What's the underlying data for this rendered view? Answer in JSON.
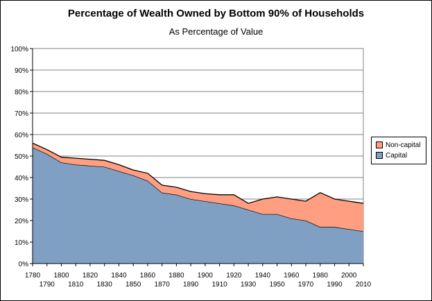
{
  "chart_data": {
    "type": "area",
    "stacked": true,
    "title": "Percentage of Wealth Owned by Bottom 90% of Households",
    "subtitle": "As Percentage of Value",
    "x": [
      1780,
      1790,
      1800,
      1810,
      1820,
      1830,
      1840,
      1850,
      1860,
      1870,
      1880,
      1890,
      1900,
      1910,
      1920,
      1930,
      1940,
      1950,
      1960,
      1970,
      1980,
      1990,
      2000,
      2010
    ],
    "x_tick_labels": [
      "1780",
      "1790",
      "1800",
      "1810",
      "1820",
      "1830",
      "1840",
      "1850",
      "1860",
      "1870",
      "1880",
      "1890",
      "1900",
      "1910",
      "1920",
      "1930",
      "1940",
      "1950",
      "1960",
      "1970",
      "1980",
      "1990",
      "2000",
      "2010"
    ],
    "y_tick_labels": [
      "0%",
      "10%",
      "20%",
      "30%",
      "40%",
      "50%",
      "60%",
      "70%",
      "80%",
      "90%",
      "100%"
    ],
    "ylim": [
      0,
      100
    ],
    "grid": true,
    "legend_position": "right",
    "series": [
      {
        "name": "Capital",
        "color": "#7FA0C3",
        "values": [
          54,
          51,
          47,
          46,
          45.5,
          45,
          43,
          41,
          38.5,
          33,
          32,
          30,
          29,
          28,
          27,
          25,
          23,
          23,
          21,
          20,
          17,
          17,
          16,
          15
        ]
      },
      {
        "name": "Non-capital",
        "color": "#FF9E80",
        "values": [
          2,
          2,
          2.5,
          3,
          3,
          3,
          3,
          2.5,
          3.5,
          3.5,
          3.5,
          3.5,
          3.5,
          4,
          5,
          3,
          7,
          8,
          9,
          9,
          16,
          13,
          13,
          13
        ]
      }
    ]
  }
}
